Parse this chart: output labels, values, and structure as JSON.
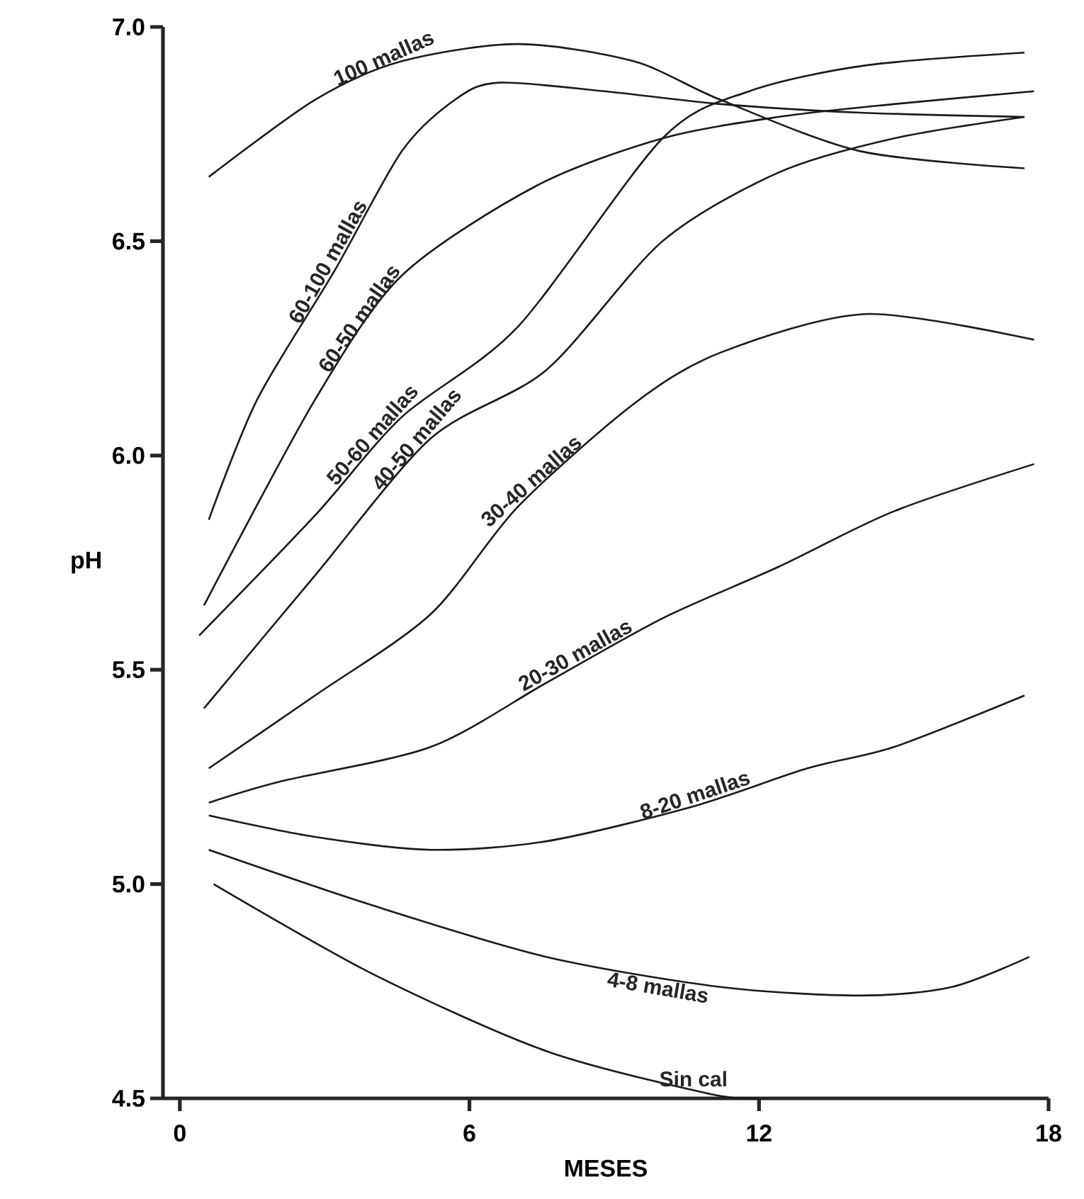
{
  "chart_data": {
    "type": "line",
    "xlabel": "MESES",
    "ylabel": "pH",
    "xlim": [
      -0.35,
      18
    ],
    "ylim": [
      4.5,
      7.0
    ],
    "xticks": [
      0,
      6,
      12,
      18
    ],
    "yticks": [
      4.5,
      {
        "value": 5.0,
        "label": "5.0"
      },
      5.5,
      {
        "value": 6.0,
        "label": "6.0"
      },
      6.5,
      {
        "value": 7.0,
        "label": "7.0"
      }
    ],
    "grid": false,
    "legend": false,
    "marker": "none",
    "line_style": "solid",
    "series": [
      {
        "name": "100 mallas",
        "color": "#1a1a1a",
        "x": [
          0.6,
          2.8,
          4.6,
          7.0,
          9.4,
          11.2,
          14.1,
          17.5
        ],
        "values": [
          6.65,
          6.83,
          6.92,
          6.96,
          6.92,
          6.83,
          6.71,
          6.67
        ]
      },
      {
        "name": "60-100 mallas",
        "color": "#1a1a1a",
        "x": [
          0.6,
          1.6,
          3.2,
          4.6,
          5.7,
          6.6,
          8.8,
          11.2,
          14.1,
          17.5
        ],
        "values": [
          5.85,
          6.13,
          6.43,
          6.71,
          6.83,
          6.87,
          6.85,
          6.82,
          6.8,
          6.79
        ]
      },
      {
        "name": "60-50 mallas",
        "color": "#1a1a1a",
        "x": [
          0.5,
          2.8,
          4.6,
          7.4,
          10.0,
          12.4,
          14.8,
          17.7
        ],
        "values": [
          5.65,
          6.13,
          6.42,
          6.63,
          6.74,
          6.79,
          6.82,
          6.85
        ]
      },
      {
        "name": "50-60 mallas",
        "color": "#1a1a1a",
        "x": [
          0.4,
          2.8,
          4.6,
          7.0,
          10.0,
          11.8,
          14.2,
          17.5
        ],
        "values": [
          5.58,
          5.86,
          6.09,
          6.3,
          6.74,
          6.85,
          6.91,
          6.94
        ]
      },
      {
        "name": "40-50 mallas",
        "color": "#1a1a1a",
        "x": [
          0.5,
          2.8,
          5.2,
          7.6,
          10.0,
          12.4,
          14.8,
          17.5
        ],
        "values": [
          5.41,
          5.72,
          6.04,
          6.2,
          6.5,
          6.66,
          6.74,
          6.79
        ]
      },
      {
        "name": "30-40 mallas",
        "color": "#1a1a1a",
        "x": [
          0.6,
          2.8,
          5.2,
          7.0,
          9.4,
          11.2,
          14.2,
          17.7
        ],
        "values": [
          5.27,
          5.44,
          5.63,
          5.88,
          6.12,
          6.24,
          6.33,
          6.27
        ]
      },
      {
        "name": "20-30 mallas",
        "color": "#1a1a1a",
        "x": [
          0.6,
          2.1,
          5.2,
          7.6,
          10.0,
          12.4,
          14.8,
          17.7
        ],
        "values": [
          5.19,
          5.24,
          5.32,
          5.47,
          5.62,
          5.74,
          5.87,
          5.98
        ]
      },
      {
        "name": "8-20 mallas",
        "color": "#1a1a1a",
        "x": [
          0.6,
          2.8,
          5.2,
          7.6,
          10.6,
          13.0,
          14.8,
          17.5
        ],
        "values": [
          5.16,
          5.11,
          5.08,
          5.1,
          5.18,
          5.27,
          5.32,
          5.44
        ]
      },
      {
        "name": "4-8 mallas",
        "color": "#1a1a1a",
        "x": [
          0.6,
          4.0,
          7.6,
          11.2,
          14.1,
          16.0,
          17.6
        ],
        "values": [
          5.08,
          4.95,
          4.83,
          4.76,
          4.74,
          4.76,
          4.83
        ]
      },
      {
        "name": "Sin cal",
        "color": "#1a1a1a",
        "x": [
          0.7,
          4.0,
          7.6,
          11.0,
          12.0
        ],
        "values": [
          5.0,
          4.79,
          4.61,
          4.51,
          4.5
        ]
      }
    ]
  }
}
